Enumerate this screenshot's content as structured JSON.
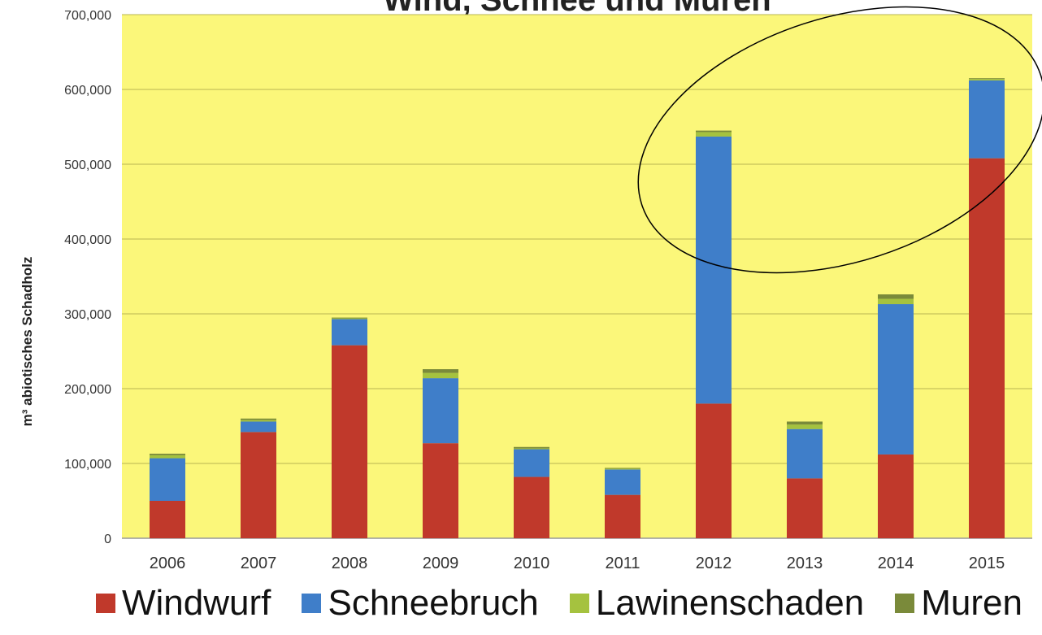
{
  "chart_data": {
    "type": "bar",
    "stacked": true,
    "title": "Wind, Schnee und Muren",
    "xlabel": "",
    "ylabel": "m³ abiotisches Schadholz",
    "ylim": [
      0,
      700000
    ],
    "yticks": [
      0,
      100000,
      200000,
      300000,
      400000,
      500000,
      600000,
      700000
    ],
    "ytick_labels": [
      "0",
      "100,000",
      "200,000",
      "300,000",
      "400,000",
      "500,000",
      "600,000",
      "700,000"
    ],
    "grid": true,
    "legend_position": "bottom",
    "categories": [
      "2006",
      "2007",
      "2008",
      "2009",
      "2010",
      "2011",
      "2012",
      "2013",
      "2014",
      "2015"
    ],
    "series": [
      {
        "name": "Windwurf",
        "color": "#c0392b",
        "values": [
          50000,
          142000,
          258000,
          127000,
          82000,
          58000,
          180000,
          80000,
          112000,
          508000
        ]
      },
      {
        "name": "Schneebruch",
        "color": "#3f7ec9",
        "values": [
          57000,
          14000,
          35000,
          87000,
          37000,
          34000,
          357000,
          66000,
          201000,
          104000
        ]
      },
      {
        "name": "Lawinenschaden",
        "color": "#a5c23f",
        "values": [
          4000,
          2000,
          1000,
          7000,
          1000,
          1000,
          6000,
          6000,
          7000,
          2000
        ]
      },
      {
        "name": "Muren",
        "color": "#7a8a3a",
        "values": [
          2000,
          2000,
          1000,
          5000,
          2000,
          1000,
          2000,
          4000,
          6000,
          1000
        ]
      }
    ],
    "annotations": [
      {
        "type": "ellipse",
        "stroke": "#000000",
        "around": [
          "2012",
          "2015"
        ]
      }
    ]
  },
  "colors": {
    "plot_background": "#fbf77a",
    "gridline": "#b9b552",
    "ellipse": "#000000"
  }
}
